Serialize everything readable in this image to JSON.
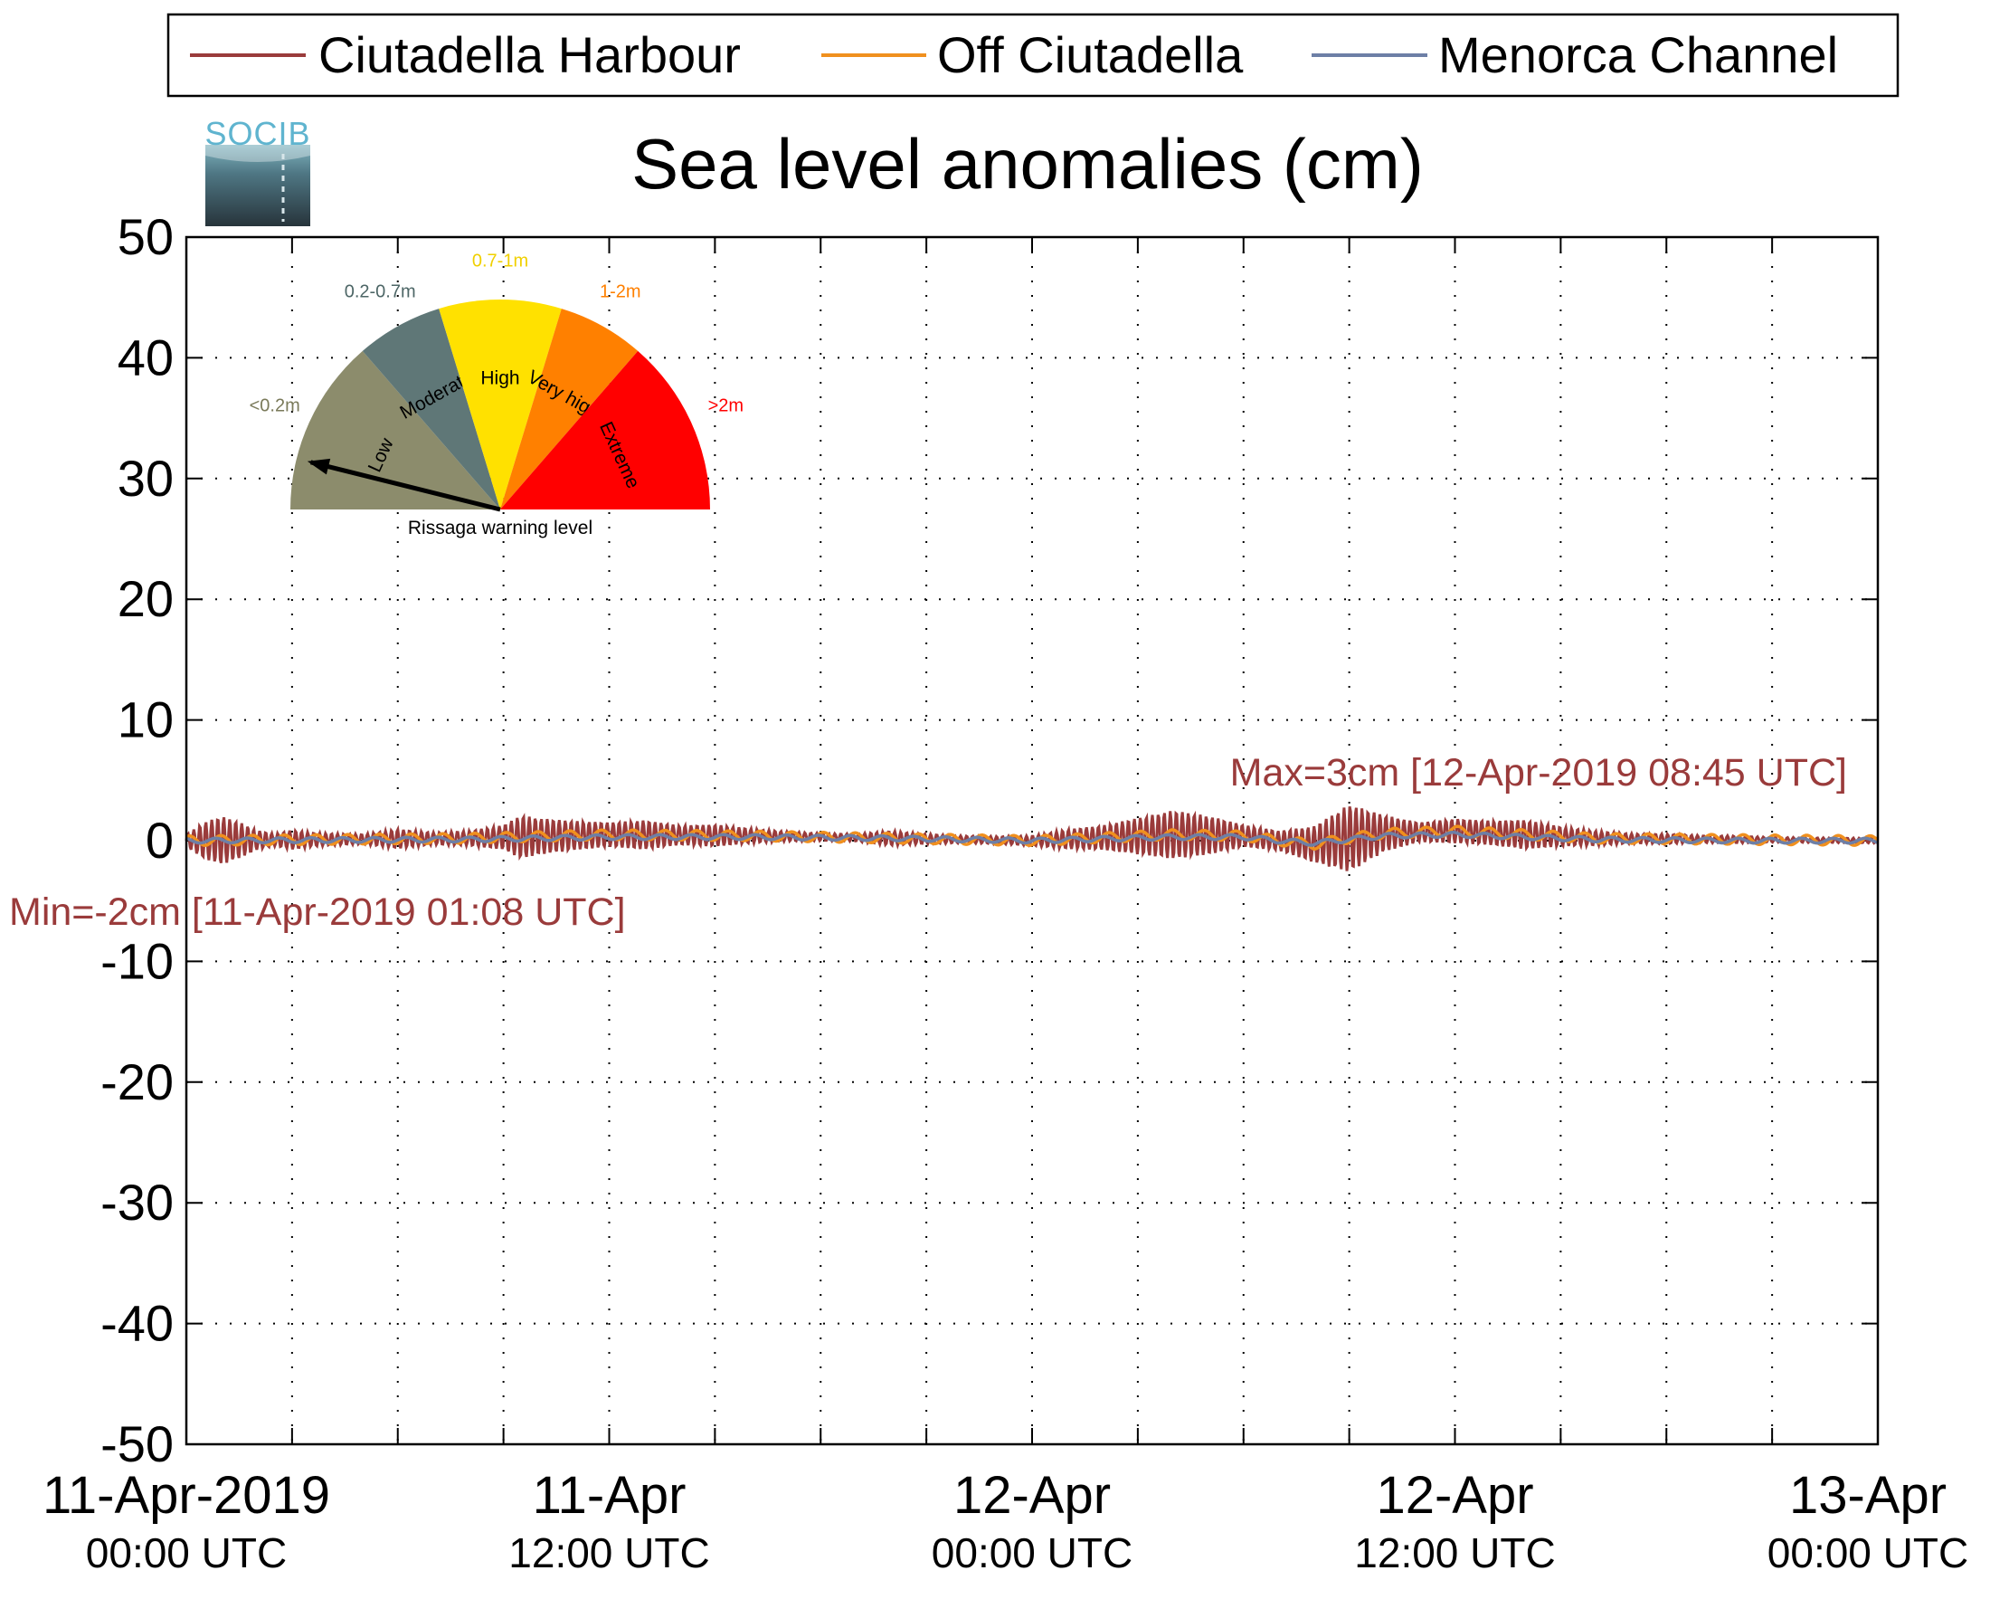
{
  "chart_data": {
    "type": "line",
    "title": "Sea level anomalies (cm)",
    "ylim": [
      -50,
      50
    ],
    "yticks": [
      50,
      40,
      30,
      20,
      10,
      0,
      -10,
      -20,
      -30,
      -40,
      -50
    ],
    "ytick_labels": [
      "50",
      "40",
      "30",
      "20",
      "10",
      "0",
      "-10",
      "-20",
      "-30",
      "-40",
      "-50"
    ],
    "x_start_hours": 0,
    "x_end_hours": 48,
    "x_tick_hours": [
      0,
      12,
      24,
      36,
      48
    ],
    "x_minor_hours": [
      3,
      6,
      9,
      15,
      18,
      21,
      27,
      30,
      33,
      39,
      42,
      45
    ],
    "x_tick_labels": [
      {
        "date": "11-Apr-2019",
        "time": "00:00 UTC"
      },
      {
        "date": "11-Apr",
        "time": "12:00 UTC"
      },
      {
        "date": "12-Apr",
        "time": "00:00 UTC"
      },
      {
        "date": "12-Apr",
        "time": "12:00 UTC"
      },
      {
        "date": "13-Apr",
        "time": "00:00 UTC"
      }
    ],
    "grid": true,
    "legend_position": "top",
    "annotations": {
      "max": "Max=3cm [12-Apr-2019 08:45 UTC]",
      "min": "Min=-2cm [11-Apr-2019 01:08 UTC]"
    },
    "series": [
      {
        "name": "Ciutadella Harbour",
        "color": "#9a3b3b",
        "envelope_hours": [
          0,
          0.5,
          1,
          1.5,
          2,
          2.5,
          3,
          3.5,
          4,
          5,
          6,
          7,
          8,
          9,
          9.5,
          10,
          11,
          12,
          13,
          14,
          15,
          16,
          17,
          18,
          19,
          20,
          21,
          22,
          23,
          24,
          25,
          26,
          27,
          28,
          29,
          30,
          31,
          32,
          33,
          34,
          35,
          36,
          37,
          38,
          39,
          40,
          41,
          42,
          43,
          44,
          45,
          46,
          47,
          48
        ],
        "envelope_cm": [
          0.5,
          1.5,
          2.0,
          1.5,
          0.8,
          0.5,
          0.8,
          0.6,
          0.5,
          0.4,
          0.8,
          0.5,
          0.6,
          1.0,
          1.8,
          1.5,
          1.2,
          1.0,
          1.2,
          0.8,
          0.9,
          0.6,
          0.4,
          0.3,
          0.3,
          0.6,
          0.4,
          0.3,
          0.3,
          0.4,
          0.8,
          1.0,
          1.5,
          2.0,
          1.6,
          0.9,
          0.8,
          1.5,
          2.8,
          1.5,
          0.8,
          1.0,
          1.0,
          1.2,
          0.8,
          0.6,
          0.4,
          0.4,
          0.3,
          0.3,
          0.2,
          0.2,
          0.2,
          0.2
        ],
        "offset_hours": [
          0,
          8,
          12,
          16,
          20,
          24,
          28,
          30,
          31,
          32,
          33,
          34,
          36,
          40,
          44,
          48
        ],
        "offset_cm": [
          0.0,
          0.2,
          0.5,
          0.4,
          0.2,
          0.0,
          0.5,
          0.4,
          0.0,
          -0.3,
          0.2,
          0.6,
          0.8,
          0.2,
          0.1,
          0.0
        ]
      },
      {
        "name": "Off Ciutadella",
        "color": "#f0901e",
        "offset_hours": [
          0,
          8,
          12,
          16,
          20,
          24,
          28,
          30,
          31,
          32,
          33,
          34,
          36,
          40,
          44,
          48
        ],
        "offset_cm": [
          0.0,
          0.2,
          0.5,
          0.4,
          0.2,
          0.0,
          0.5,
          0.4,
          0.0,
          -0.3,
          0.2,
          0.6,
          0.8,
          0.2,
          0.1,
          0.0
        ],
        "amplitude_cm": 0.4
      },
      {
        "name": "Menorca Channel",
        "color": "#6d7fa6",
        "offset_hours": [
          0,
          8,
          12,
          16,
          20,
          24,
          28,
          30,
          31,
          32,
          33,
          34,
          36,
          40,
          44,
          48
        ],
        "offset_cm": [
          0.0,
          0.1,
          0.3,
          0.3,
          0.2,
          0.0,
          0.3,
          0.3,
          0.0,
          -0.2,
          0.1,
          0.4,
          0.5,
          0.1,
          0.0,
          0.0
        ],
        "amplitude_cm": 0.2
      }
    ]
  },
  "logo": {
    "text": "SOCIB"
  },
  "gauge": {
    "caption": "Rissaga warning level",
    "needle_level": "Low",
    "sectors": [
      {
        "name": "Low",
        "range": "<0.2m",
        "color": "#8c8c6c",
        "range_color": "#7a7a5a",
        "name_color": "#000000"
      },
      {
        "name": "Moderate",
        "range": "0.2-0.7m",
        "color": "#5f7777",
        "range_color": "#4d6666",
        "name_color": "#000000"
      },
      {
        "name": "High",
        "range": "0.7-1m",
        "color": "#ffe100",
        "range_color": "#f0d000",
        "name_color": "#000000"
      },
      {
        "name": "Very high",
        "range": "1-2m",
        "color": "#ff8000",
        "range_color": "#ff8000",
        "name_color": "#000000"
      },
      {
        "name": "Extreme",
        "range": ">2m",
        "color": "#ff0000",
        "range_color": "#ff0000",
        "name_color": "#000000"
      }
    ]
  }
}
